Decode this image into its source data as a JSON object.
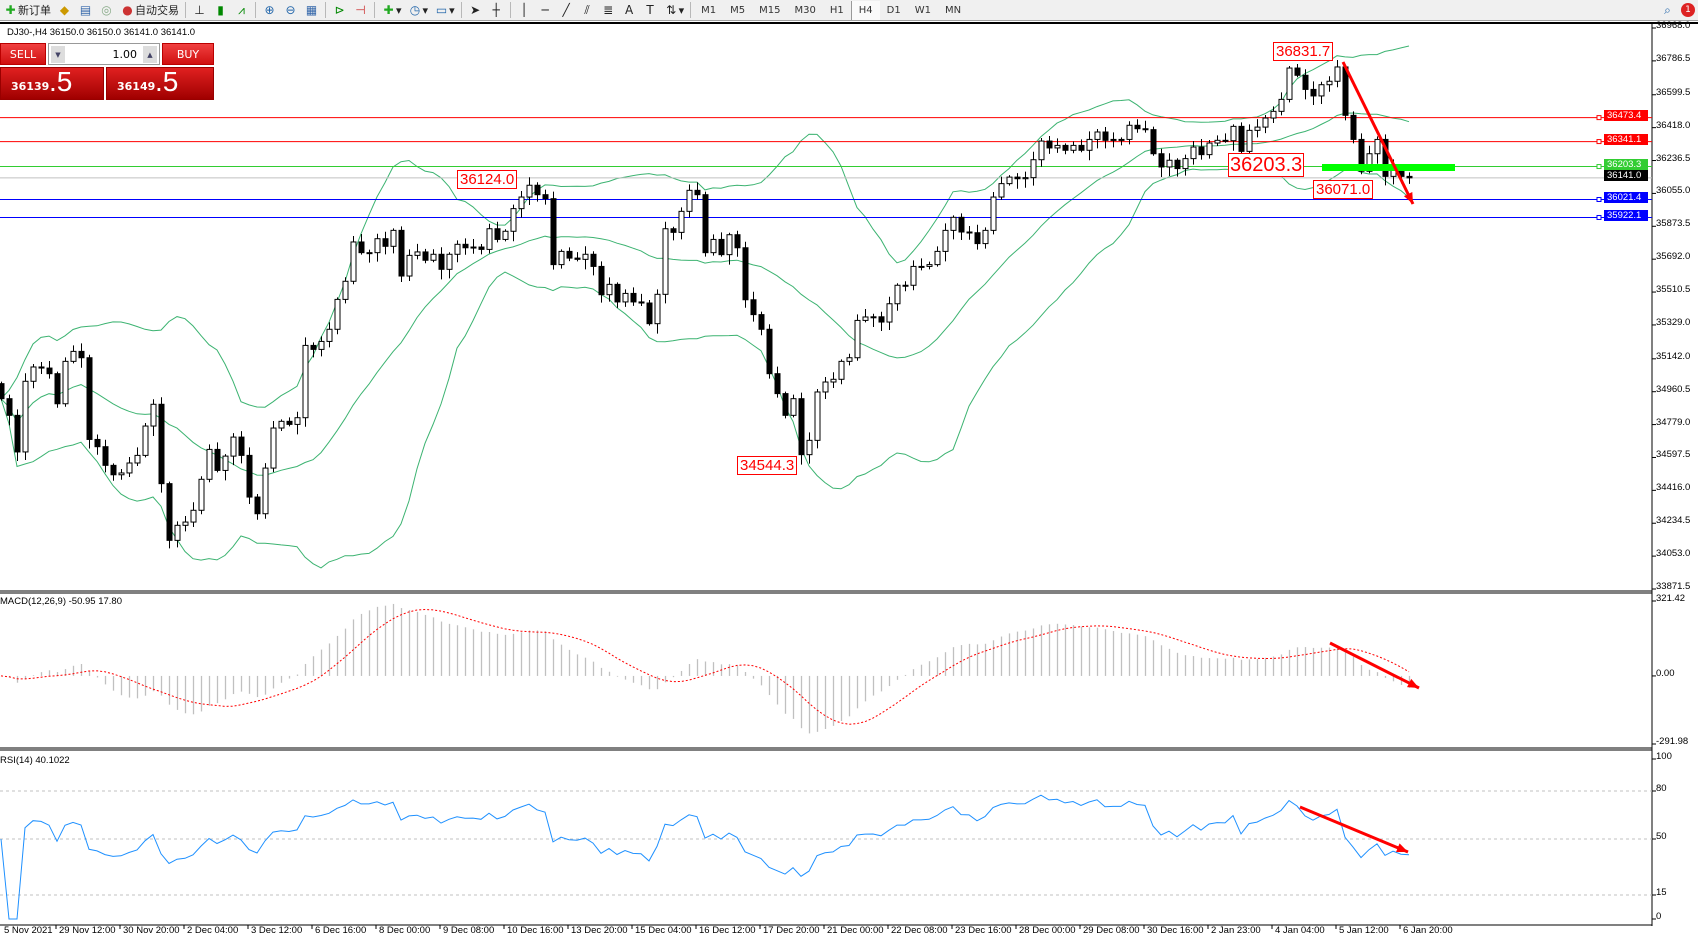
{
  "toolbar": {
    "new_order": "新订单",
    "auto_trading": "自动交易",
    "timeframes": [
      "M1",
      "M5",
      "M15",
      "M30",
      "H1",
      "H4",
      "D1",
      "W1",
      "MN"
    ],
    "active_timeframe": "H4",
    "notification_count": "1"
  },
  "chart_header": "DJ30-,H4  36150.0 36150.0 36141.0 36141.0",
  "trade_panel": {
    "sell_label": "SELL",
    "buy_label": "BUY",
    "lot": "1.00",
    "sell_price_main": "36139",
    "sell_price_big": ".5",
    "buy_price_main": "36149",
    "buy_price_big": ".5"
  },
  "indicators": {
    "macd_label": "MACD(12,26,9) -50.95 17.80",
    "rsi_label": "RSI(14) 40.1022"
  },
  "colors": {
    "bull": "#ffffff",
    "bear": "#000000",
    "bands": "#3cb371",
    "macd_hist": "#c0c0c0",
    "macd_signal": "#ff0000",
    "rsi": "#1e90ff",
    "annotation": "#ff0000",
    "arrow": "#ff0000",
    "zone": "#00ff00"
  },
  "chart_data": {
    "type": "candlestick",
    "symbol": "DJ30-",
    "timeframe": "H4",
    "first_open": 35005,
    "close": [
      34922,
      34830,
      34628,
      35018,
      35097,
      35091,
      35060,
      34894,
      35128,
      35183,
      35148,
      34697,
      34657,
      34554,
      34502,
      34512,
      34567,
      34609,
      34771,
      34891,
      34453,
      34140,
      34223,
      34241,
      34306,
      34477,
      34642,
      34526,
      34605,
      34710,
      34609,
      34379,
      34287,
      34539,
      34760,
      34797,
      34780,
      34817,
      35216,
      35194,
      35238,
      35305,
      35470,
      35570,
      35787,
      35728,
      35728,
      35805,
      35763,
      35851,
      35599,
      35713,
      35732,
      35686,
      35719,
      35636,
      35719,
      35774,
      35755,
      35759,
      35746,
      35860,
      35801,
      35846,
      35971,
      36035,
      36100,
      36048,
      36026,
      35662,
      35735,
      35698,
      35691,
      35719,
      35652,
      35496,
      35553,
      35456,
      35503,
      35456,
      35450,
      35336,
      35498,
      35860,
      35840,
      35956,
      36072,
      36048,
      35728,
      35801,
      35717,
      35827,
      35755,
      35468,
      35386,
      35305,
      35060,
      34950,
      34830,
      34922,
      34613,
      34692,
      34959,
      35014,
      35029,
      35128,
      35148,
      35354,
      35373,
      35374,
      35345,
      35446,
      35548,
      35548,
      35652,
      35652,
      35662,
      35735,
      35851,
      35923,
      35842,
      35838,
      35778,
      35851,
      36035,
      36109,
      36145,
      36136,
      36142,
      36241,
      36344,
      36306,
      36320,
      36293,
      36320,
      36293,
      36353,
      36394,
      36348,
      36353,
      36353,
      36431,
      36412,
      36407,
      36274,
      36201,
      36238,
      36192,
      36247,
      36311,
      36269,
      36333,
      36348,
      36346,
      36425,
      36287,
      36403,
      36421,
      36471,
      36508,
      36574,
      36747,
      36707,
      36629,
      36593,
      36655,
      36674,
      36753,
      36486,
      36353,
      36177,
      36274,
      36353,
      36149,
      36204,
      36149,
      36141
    ],
    "overlays": {
      "bollinger": {
        "period": 20,
        "deviation": 2
      }
    },
    "price_axis": {
      "ylim": [
        33871.5,
        36968.0
      ],
      "ticks": [
        "36968.0",
        "36786.5",
        "36599.5",
        "36418.0",
        "36236.5",
        "36055.0",
        "35873.5",
        "35692.0",
        "35510.5",
        "35329.0",
        "35142.0",
        "34960.5",
        "34779.0",
        "34597.5",
        "34416.0",
        "34234.5",
        "34053.0",
        "33871.5"
      ]
    },
    "levels": [
      {
        "price": "36473.4",
        "color": "#ff0000"
      },
      {
        "price": "36341.1",
        "color": "#ff0000"
      },
      {
        "price": "36203.3",
        "color": "#32cd32"
      },
      {
        "price": "36141.0",
        "color": "#000000",
        "kind": "current"
      },
      {
        "price": "36021.4",
        "color": "#0000ff"
      },
      {
        "price": "35922.1",
        "color": "#0000ff"
      }
    ],
    "annotations": [
      "36831.7",
      "36203.3",
      "36071.0",
      "36124.0",
      "34544.3"
    ],
    "time_labels": [
      "5 Nov 2021",
      "29 Nov 12:00",
      "30 Nov 20:00",
      "2 Dec 04:00",
      "3 Dec 12:00",
      "6 Dec 16:00",
      "8 Dec 00:00",
      "9 Dec 08:00",
      "10 Dec 16:00",
      "13 Dec 20:00",
      "15 Dec 04:00",
      "16 Dec 12:00",
      "17 Dec 20:00",
      "21 Dec 00:00",
      "22 Dec 08:00",
      "23 Dec 16:00",
      "28 Dec 00:00",
      "29 Dec 08:00",
      "30 Dec 16:00",
      "2 Jan 23:00",
      "4 Jan 04:00",
      "5 Jan 12:00",
      "6 Jan 20:00"
    ],
    "macd": {
      "fast": 12,
      "slow": 26,
      "signal": 9,
      "ylim": [
        -291.98,
        321.42
      ],
      "ticks": [
        "321.42",
        "0.00",
        "-291.98"
      ]
    },
    "rsi": {
      "period": 14,
      "ylim": [
        0,
        100
      ],
      "levels": [
        80,
        50,
        15
      ],
      "ticks": [
        "100",
        "80",
        "50",
        "15",
        "0"
      ]
    }
  }
}
